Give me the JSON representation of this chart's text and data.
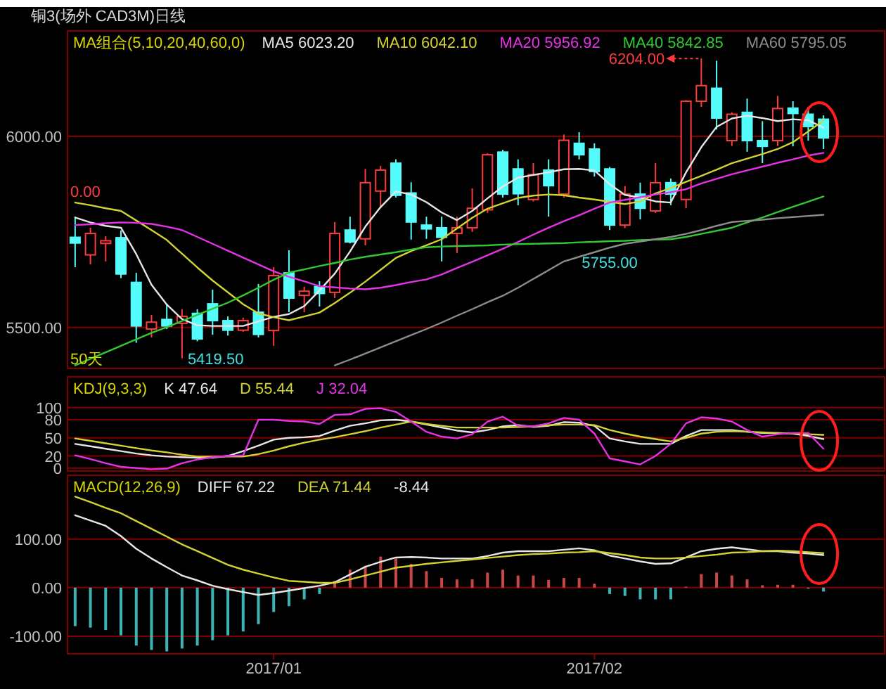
{
  "chart_data": [
    {
      "type": "candlestick",
      "title": "铜3(场外 CAD3M)日线",
      "legend_title": "MA组合(5,10,20,40,60,0)",
      "legend": "top",
      "grid": "y",
      "tick_labels": "y",
      "ylim": [
        5393,
        6276
      ],
      "yticks": [
        {
          "value": 6000,
          "label": "6000.00"
        },
        {
          "value": 5500,
          "label": "5500.00"
        }
      ],
      "categories": [
        null,
        null,
        null,
        null,
        null,
        null,
        null,
        null,
        null,
        null,
        null,
        null,
        null,
        "2017/01",
        null,
        null,
        null,
        null,
        null,
        null,
        null,
        null,
        null,
        null,
        null,
        null,
        null,
        null,
        null,
        null,
        null,
        null,
        null,
        null,
        "2017/02",
        null,
        null,
        null,
        null,
        null,
        null,
        null,
        null,
        null,
        null,
        null,
        null,
        null,
        null,
        null
      ],
      "ohlc": [
        [
          5736,
          5790,
          5658,
          5721
        ],
        [
          5690,
          5761,
          5665,
          5746
        ],
        [
          5720,
          5739,
          5673,
          5727
        ],
        [
          5735,
          5754,
          5629,
          5640
        ],
        [
          5618,
          5643,
          5460,
          5504
        ],
        [
          5496,
          5533,
          5474,
          5514
        ],
        [
          5521,
          5562,
          5496,
          5504
        ],
        [
          5511,
          5548,
          5419.5,
          5529
        ],
        [
          5537,
          5548,
          5464,
          5470
        ],
        [
          5562,
          5599,
          5481,
          5518
        ],
        [
          5518,
          5529,
          5479,
          5493
        ],
        [
          5493,
          5526,
          5489,
          5518
        ],
        [
          5540,
          5614,
          5474,
          5482
        ],
        [
          5492,
          5658,
          5452,
          5636
        ],
        [
          5643,
          5702,
          5540,
          5577
        ],
        [
          5584,
          5607,
          5540,
          5595
        ],
        [
          5607,
          5621,
          5555,
          5589
        ],
        [
          5592,
          5776,
          5577,
          5746
        ],
        [
          5755,
          5790,
          5720,
          5724
        ],
        [
          5732,
          5915,
          5715,
          5879
        ],
        [
          5857,
          5923,
          5812,
          5912
        ],
        [
          5930,
          5940,
          5840,
          5846
        ],
        [
          5852,
          5880,
          5730,
          5776
        ],
        [
          5768,
          5790,
          5732,
          5758
        ],
        [
          5761,
          5790,
          5673,
          5736
        ],
        [
          5746,
          5790,
          5695,
          5761
        ],
        [
          5761,
          5864,
          5750,
          5812
        ],
        [
          5808,
          5956,
          5800,
          5952
        ],
        [
          5959,
          5965,
          5840,
          5849
        ],
        [
          5915,
          5940,
          5820,
          5850
        ],
        [
          5835,
          5930,
          5830,
          5900
        ],
        [
          5912,
          5940,
          5790,
          5871
        ],
        [
          5849,
          6005,
          5840,
          5990
        ],
        [
          5982,
          6011,
          5940,
          5952
        ],
        [
          5967,
          5982,
          5895,
          5908
        ],
        [
          5915,
          5920,
          5755,
          5768
        ],
        [
          5768,
          5870,
          5760,
          5849
        ],
        [
          5849,
          5879,
          5783,
          5812
        ],
        [
          5805,
          5930,
          5800,
          5879
        ],
        [
          5879,
          5890,
          5820,
          5849
        ],
        [
          5835,
          6095,
          5812,
          6092
        ],
        [
          6092,
          6204,
          6077,
          6133
        ],
        [
          6126,
          6198,
          6018,
          6048
        ],
        [
          5989,
          6063,
          5975,
          6058
        ],
        [
          6063,
          6099,
          5960,
          5989
        ],
        [
          5989,
          6040,
          5930,
          5974
        ],
        [
          5989,
          6106,
          5975,
          6073
        ],
        [
          6074,
          6092,
          5974,
          6060
        ],
        [
          6058,
          6077,
          5989,
          6026
        ],
        [
          6045,
          6055,
          5967,
          5996
        ]
      ],
      "series": [
        {
          "name": "MA5 6023.20",
          "color": "#e6e6e6",
          "type": "line",
          "values": [
            5788,
            5775,
            5766,
            5761,
            5692,
            5612,
            5560,
            5522,
            5506,
            5504,
            5504,
            5504,
            5516,
            5528,
            5535,
            5556,
            5597,
            5641,
            5699,
            5764,
            5815,
            5856,
            5848,
            5828,
            5801,
            5781,
            5805,
            5838,
            5869,
            5892,
            5899,
            5906,
            5914,
            5915,
            5911,
            5875,
            5847,
            5840,
            5830,
            5827,
            5906,
            5972,
            6025,
            6047,
            6054,
            6048,
            6040,
            6045,
            6042,
            6023
          ]
        },
        {
          "name": "MA10 6042.10",
          "color": "#d2d232",
          "type": "line",
          "values": [
            5827,
            5820,
            5812,
            5805,
            5780,
            5755,
            5729,
            5693,
            5657,
            5623,
            5592,
            5561,
            5537,
            5527,
            5519,
            5529,
            5539,
            5564,
            5591,
            5620,
            5651,
            5682,
            5700,
            5715,
            5731,
            5759,
            5787,
            5811,
            5825,
            5839,
            5845,
            5848,
            5846,
            5840,
            5835,
            5829,
            5823,
            5830,
            5851,
            5865,
            5881,
            5897,
            5913,
            5930,
            5942,
            5954,
            5967,
            5985,
            6013,
            6042
          ]
        },
        {
          "name": "MA20 5956.92",
          "color": "#e632e6",
          "type": "line",
          "values": [
            5768,
            5770,
            5773,
            5775,
            5774,
            5771,
            5764,
            5755,
            5737,
            5719,
            5701,
            5683,
            5665,
            5647,
            5633,
            5621,
            5608,
            5605,
            5602,
            5600,
            5604,
            5611,
            5619,
            5626,
            5639,
            5656,
            5672,
            5689,
            5706,
            5724,
            5743,
            5761,
            5778,
            5794,
            5811,
            5827,
            5834,
            5841,
            5848,
            5854,
            5862,
            5877,
            5889,
            5901,
            5911,
            5921,
            5931,
            5940,
            5950,
            5957
          ]
        },
        {
          "name": "MA40 5842.85",
          "color": "#32c832",
          "type": "line",
          "values": [
            5401,
            5418,
            5435,
            5452,
            5469,
            5486,
            5501,
            5517,
            5533,
            5549,
            5565,
            5584,
            5604,
            5625,
            5644,
            5652,
            5661,
            5669,
            5678,
            5685,
            5691,
            5697,
            5704,
            5710,
            5712,
            5713,
            5714,
            5715,
            5717,
            5718,
            5719,
            5720,
            5721,
            5723,
            5724,
            5726,
            5727,
            5729,
            5730,
            5731,
            5737,
            5745,
            5753,
            5761,
            5775,
            5788,
            5802,
            5816,
            5829,
            5843
          ]
        },
        {
          "name": "MA60 5795.05",
          "color": "#8c8c8c",
          "type": "line",
          "values": [
            null,
            null,
            null,
            null,
            null,
            null,
            null,
            null,
            null,
            null,
            null,
            null,
            null,
            null,
            null,
            null,
            null,
            5401,
            5416,
            5432,
            5448,
            5464,
            5480,
            5496,
            5513,
            5531,
            5548,
            5566,
            5583,
            5604,
            5627,
            5650,
            5673,
            5685,
            5697,
            5709,
            5719,
            5725,
            5731,
            5737,
            5745,
            5755,
            5766,
            5776,
            5779,
            5782,
            5786,
            5789,
            5792,
            5795
          ]
        }
      ],
      "annotations": [
        "6204.00",
        "5419.50",
        {
          "text": "5755.00",
          "y": 5755
        },
        "0.00",
        "50天"
      ]
    },
    {
      "type": "line",
      "legend_title": "KDJ(9,3,3)",
      "legend": "top left",
      "grid": "y",
      "tick_labels": "y",
      "ylim": [
        -5,
        151
      ],
      "yticks": [
        100,
        80,
        50,
        20,
        0
      ],
      "categories": [
        null,
        null,
        null,
        null,
        null,
        null,
        null,
        null,
        null,
        null,
        null,
        null,
        null,
        "2017/01",
        null,
        null,
        null,
        null,
        null,
        null,
        null,
        null,
        null,
        null,
        null,
        null,
        null,
        null,
        null,
        null,
        null,
        null,
        null,
        null,
        "2017/02",
        null,
        null,
        null,
        null,
        null,
        null,
        null,
        null,
        null,
        null,
        null,
        null,
        null,
        null,
        null
      ],
      "series": [
        {
          "name": "K 47.64",
          "color": "#e6e6e6",
          "values": [
            40,
            36,
            32,
            28,
            24,
            21,
            19,
            18,
            17,
            17,
            20,
            28,
            37,
            47,
            50,
            51,
            53,
            62,
            70,
            74,
            79,
            80,
            77,
            72,
            67,
            62,
            59,
            63,
            69,
            71,
            68,
            70,
            76,
            75,
            70,
            49,
            44,
            40,
            40,
            40,
            53,
            63,
            63,
            63,
            60,
            58,
            58,
            57,
            53,
            48
          ]
        },
        {
          "name": "D 55.44",
          "color": "#d2d232",
          "values": [
            49,
            45,
            41,
            37,
            33,
            29,
            26,
            22,
            19,
            19,
            19,
            19,
            23,
            29,
            36,
            42,
            47,
            51,
            56,
            61,
            67,
            72,
            77,
            73,
            70,
            67,
            67,
            67,
            67,
            68,
            69,
            71,
            72,
            72,
            71,
            63,
            57,
            52,
            48,
            44,
            50,
            57,
            60,
            61,
            60,
            59,
            58,
            57,
            56,
            55
          ]
        },
        {
          "name": "J 32.04",
          "color": "#e632e6",
          "values": [
            21,
            15,
            8,
            2,
            0,
            -2,
            -1,
            8,
            14,
            18,
            20,
            21,
            80,
            80,
            78,
            77,
            73,
            88,
            89,
            98,
            99,
            93,
            77,
            60,
            52,
            49,
            56,
            77,
            85,
            70,
            69,
            74,
            83,
            80,
            57,
            16,
            11,
            6,
            20,
            40,
            74,
            84,
            82,
            77,
            63,
            52,
            56,
            58,
            58,
            32
          ]
        }
      ]
    },
    {
      "type": "line",
      "legend_title": "MACD(12,26,9)",
      "legend": "top left",
      "grid": "y",
      "ylim": [
        -136,
        231
      ],
      "yticks": [
        {
          "value": 100,
          "label": "100.00"
        },
        {
          "value": 0,
          "label": "0.00"
        },
        {
          "value": -100,
          "label": "-100.00"
        }
      ],
      "categories": [
        null,
        null,
        null,
        null,
        null,
        null,
        null,
        null,
        null,
        null,
        null,
        null,
        null,
        "2017/01",
        null,
        null,
        null,
        null,
        null,
        null,
        null,
        null,
        null,
        null,
        null,
        null,
        null,
        null,
        null,
        null,
        null,
        null,
        null,
        null,
        "2017/02",
        null,
        null,
        null,
        null,
        null,
        null,
        null,
        null,
        null,
        null,
        null,
        null,
        null,
        null,
        null
      ],
      "series": [
        {
          "type": "bar",
          "values": [
            -79,
            -82,
            -87,
            -98,
            -119,
            -128,
            -131,
            -125,
            -119,
            -108,
            -98,
            -90,
            -75,
            -50,
            -38,
            -24,
            -13,
            14,
            37,
            45,
            64,
            60,
            49,
            34,
            20,
            17,
            17,
            31,
            37,
            25,
            25,
            16,
            20,
            20,
            8,
            -13,
            -17,
            -24,
            -24,
            -24,
            2,
            28,
            31,
            25,
            17,
            5,
            6,
            6,
            -2,
            -8
          ],
          "colors": [
            "#3cb4b4",
            "#3cb4b4",
            "#3cb4b4",
            "#3cb4b4",
            "#3cb4b4",
            "#3cb4b4",
            "#3cb4b4",
            "#3cb4b4",
            "#3cb4b4",
            "#3cb4b4",
            "#3cb4b4",
            "#3cb4b4",
            "#3cb4b4",
            "#3cb4b4",
            "#3cb4b4",
            "#3cb4b4",
            "#3cb4b4",
            "#c84646",
            "#c84646",
            "#c84646",
            "#c84646",
            "#c84646",
            "#c84646",
            "#c84646",
            "#c84646",
            "#c84646",
            "#c84646",
            "#c84646",
            "#c84646",
            "#c84646",
            "#c84646",
            "#c84646",
            "#c84646",
            "#c84646",
            "#c84646",
            "#3cb4b4",
            "#3cb4b4",
            "#3cb4b4",
            "#3cb4b4",
            "#3cb4b4",
            "#c84646",
            "#c84646",
            "#c84646",
            "#c84646",
            "#c84646",
            "#c84646",
            "#c84646",
            "#c84646",
            "#3cb4b4",
            "#3cb4b4"
          ]
        },
        {
          "name": "DIFF 67.22",
          "color": "#e6e6e6",
          "type": "line",
          "values": [
            149,
            138,
            127,
            106,
            80,
            60,
            42,
            25,
            15,
            4,
            -3,
            -9,
            -15,
            -11,
            -6,
            -1,
            4,
            11,
            27,
            43,
            53,
            62,
            63,
            62,
            60,
            60,
            60,
            65,
            72,
            75,
            75,
            75,
            78,
            81,
            77,
            66,
            60,
            54,
            49,
            50,
            62,
            75,
            80,
            83,
            79,
            75,
            75,
            72,
            70,
            67
          ]
        },
        {
          "name": "DEA 71.44",
          "color": "#d2d232",
          "type": "line",
          "values": [
            187,
            176,
            164,
            153,
            137,
            121,
            105,
            89,
            75,
            61,
            47,
            37,
            29,
            21,
            14,
            12,
            10,
            10,
            17,
            25,
            33,
            41,
            45,
            49,
            52,
            55,
            58,
            61,
            64,
            67,
            69,
            70,
            72,
            73,
            75,
            71,
            67,
            62,
            60,
            60,
            62,
            65,
            68,
            72,
            73,
            75,
            76,
            75,
            73,
            71
          ]
        }
      ],
      "annotations": [
        "-8.44"
      ]
    }
  ]
}
